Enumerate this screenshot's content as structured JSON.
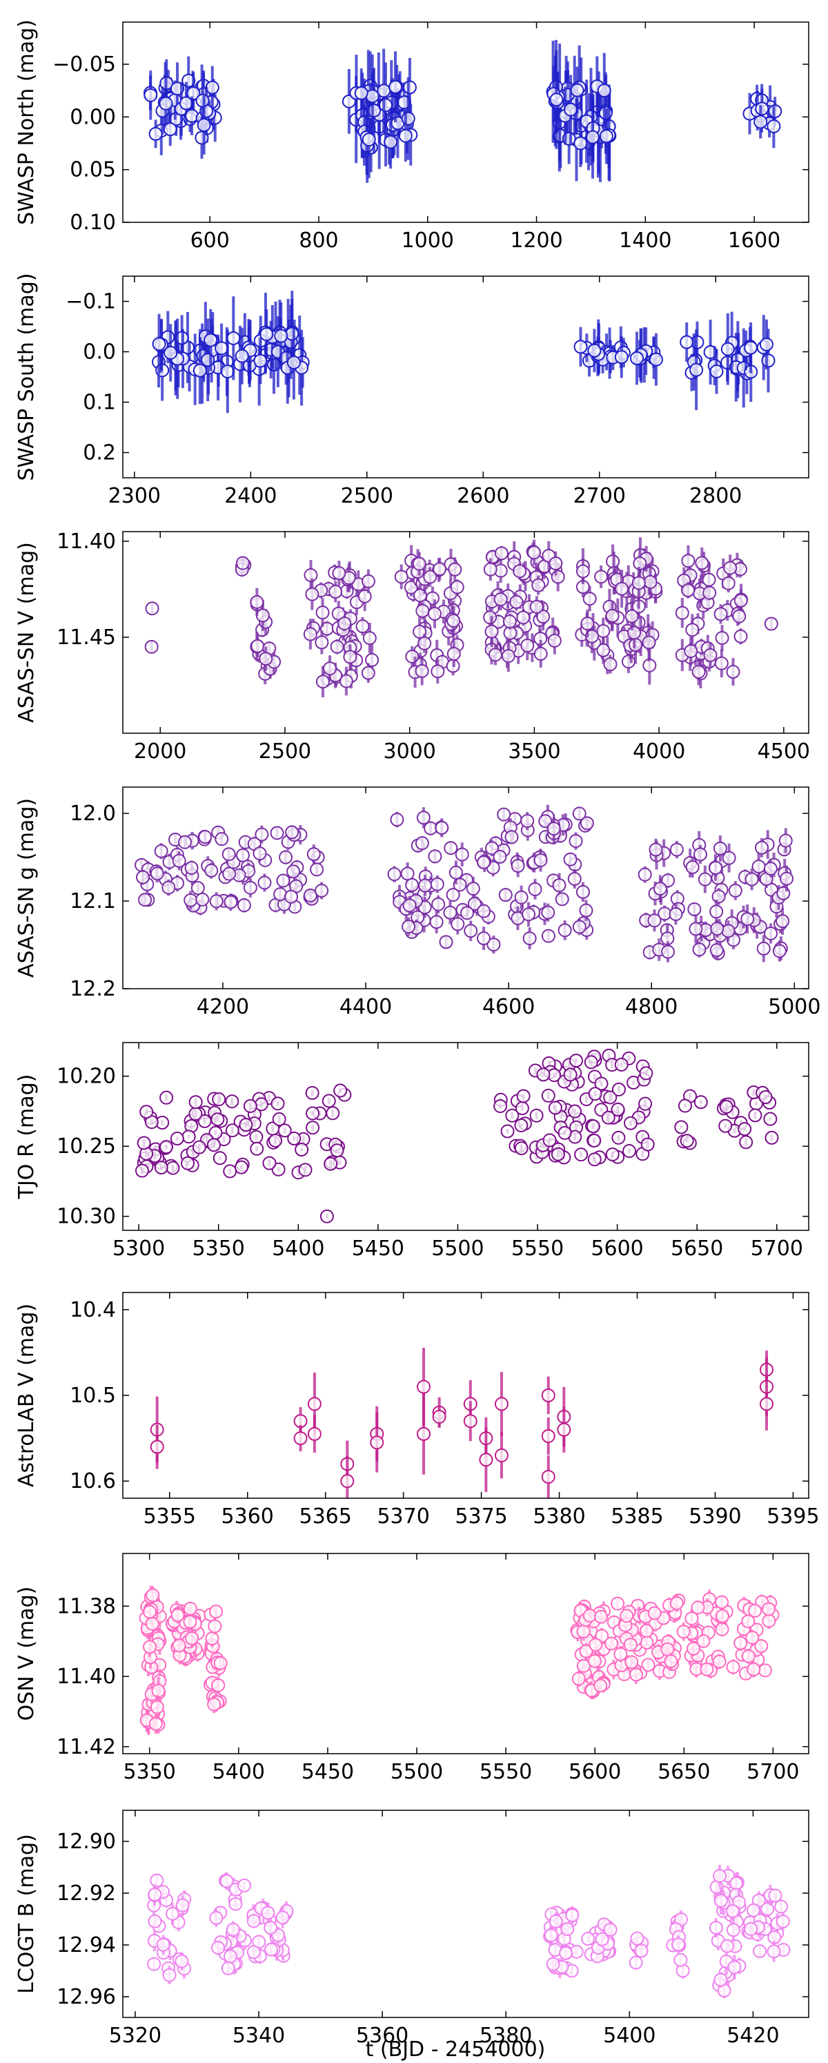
{
  "figure": {
    "xlabel": "t (BJD - 2454000)"
  },
  "chart_data": [
    {
      "type": "scatter",
      "ylabel": "SWASP North (mag)",
      "color": "#1f1fc8",
      "xlim": [
        440,
        1700
      ],
      "ylim": [
        -0.09,
        0.1
      ],
      "y_inverted": true,
      "xticks": [
        600,
        800,
        1000,
        1200,
        1400,
        1600
      ],
      "yticks": [
        -0.05,
        0.0,
        0.05,
        0.1
      ],
      "ytick_labels": [
        "−0.05",
        "0.00",
        "0.05",
        "0.10"
      ],
      "clusters": [
        {
          "x0": 490,
          "x1": 610,
          "n": 40,
          "ymin": -0.04,
          "ymax": 0.02,
          "err": 0.02
        },
        {
          "x0": 855,
          "x1": 970,
          "n": 45,
          "ymin": -0.03,
          "ymax": 0.03,
          "err": 0.03
        },
        {
          "x0": 1230,
          "x1": 1335,
          "n": 50,
          "ymin": -0.03,
          "ymax": 0.03,
          "err": 0.035
        },
        {
          "x0": 1590,
          "x1": 1640,
          "n": 12,
          "ymin": -0.02,
          "ymax": 0.01,
          "err": 0.015
        }
      ]
    },
    {
      "type": "scatter",
      "ylabel": "SWASP South (mag)",
      "color": "#1f1fc8",
      "xlim": [
        2290,
        2880
      ],
      "ylim": [
        -0.15,
        0.25
      ],
      "y_inverted": true,
      "xticks": [
        2300,
        2400,
        2500,
        2600,
        2700,
        2800
      ],
      "yticks": [
        -0.1,
        0.0,
        0.1,
        0.2
      ],
      "ytick_labels": [
        "−0.1",
        "0.0",
        "0.1",
        "0.2"
      ],
      "clusters": [
        {
          "x0": 2320,
          "x1": 2445,
          "n": 70,
          "ymin": -0.04,
          "ymax": 0.04,
          "err": 0.06
        },
        {
          "x0": 2683,
          "x1": 2755,
          "n": 25,
          "ymin": -0.01,
          "ymax": 0.02,
          "err": 0.04
        },
        {
          "x0": 2775,
          "x1": 2850,
          "n": 25,
          "ymin": -0.02,
          "ymax": 0.05,
          "err": 0.06
        }
      ]
    },
    {
      "type": "scatter",
      "ylabel": "ASAS-SN V (mag)",
      "color": "#7a2fa5",
      "xlim": [
        1850,
        4600
      ],
      "ylim": [
        11.395,
        11.5
      ],
      "y_inverted": true,
      "xticks": [
        2000,
        2500,
        3000,
        3500,
        4000,
        4500
      ],
      "yticks": [
        11.4,
        11.45
      ],
      "ytick_labels": [
        "11.40",
        "11.45"
      ],
      "clusters": [
        {
          "x0": 1965,
          "x1": 1975,
          "n": 2,
          "ymin": 11.435,
          "ymax": 11.455,
          "err": 0.004
        },
        {
          "x0": 2320,
          "x1": 2340,
          "n": 4,
          "ymin": 11.41,
          "ymax": 11.415,
          "err": 0.004
        },
        {
          "x0": 2370,
          "x1": 2460,
          "n": 14,
          "ymin": 11.425,
          "ymax": 11.47,
          "err": 0.006
        },
        {
          "x0": 2600,
          "x1": 2850,
          "n": 45,
          "ymin": 11.415,
          "ymax": 11.475,
          "err": 0.006
        },
        {
          "x0": 2950,
          "x1": 3200,
          "n": 50,
          "ymin": 11.41,
          "ymax": 11.47,
          "err": 0.006
        },
        {
          "x0": 3320,
          "x1": 3600,
          "n": 60,
          "ymin": 11.405,
          "ymax": 11.46,
          "err": 0.006
        },
        {
          "x0": 3690,
          "x1": 3990,
          "n": 60,
          "ymin": 11.405,
          "ymax": 11.465,
          "err": 0.008
        },
        {
          "x0": 4090,
          "x1": 4340,
          "n": 45,
          "ymin": 11.41,
          "ymax": 11.47,
          "err": 0.006
        },
        {
          "x0": 4450,
          "x1": 4460,
          "n": 1,
          "ymin": 11.443,
          "ymax": 11.443,
          "err": 0.004
        }
      ]
    },
    {
      "type": "scatter",
      "ylabel": "ASAS-SN g (mag)",
      "color": "#7a2fa5",
      "xlim": [
        4060,
        5020
      ],
      "ylim": [
        11.97,
        12.2
      ],
      "y_inverted": true,
      "xticks": [
        4200,
        4400,
        4600,
        4800,
        5000
      ],
      "yticks": [
        12.0,
        12.1,
        12.2
      ],
      "ytick_labels": [
        "12.0",
        "12.1",
        "12.2"
      ],
      "clusters": [
        {
          "x0": 4085,
          "x1": 4345,
          "n": 80,
          "ymin": 12.02,
          "ymax": 12.11,
          "err": 0.008
        },
        {
          "x0": 4440,
          "x1": 4710,
          "n": 110,
          "ymin": 12.0,
          "ymax": 12.15,
          "err": 0.01
        },
        {
          "x0": 4790,
          "x1": 4990,
          "n": 80,
          "ymin": 12.03,
          "ymax": 12.16,
          "err": 0.012
        }
      ]
    },
    {
      "type": "scatter",
      "ylabel": "TJO R (mag)",
      "color": "#7a0f8a",
      "xlim": [
        5290,
        5720
      ],
      "ylim": [
        10.176,
        10.31
      ],
      "y_inverted": true,
      "xticks": [
        5300,
        5350,
        5400,
        5450,
        5500,
        5550,
        5600,
        5650,
        5700
      ],
      "yticks": [
        10.2,
        10.25,
        10.3
      ],
      "ytick_labels": [
        "10.20",
        "10.25",
        "10.30"
      ],
      "clusters": [
        {
          "x0": 5300,
          "x1": 5430,
          "n": 90,
          "ymin": 10.21,
          "ymax": 10.27,
          "err": 0.002
        },
        {
          "x0": 5418,
          "x1": 5420,
          "n": 1,
          "ymin": 10.3,
          "ymax": 10.3,
          "err": 0.002
        },
        {
          "x0": 5525,
          "x1": 5620,
          "n": 90,
          "ymin": 10.185,
          "ymax": 10.26,
          "err": 0.002
        },
        {
          "x0": 5640,
          "x1": 5700,
          "n": 25,
          "ymin": 10.21,
          "ymax": 10.25,
          "err": 0.002
        }
      ]
    },
    {
      "type": "scatter",
      "ylabel": "AstroLAB V (mag)",
      "color": "#c01a8a",
      "xlim": [
        5352,
        5396
      ],
      "ylim": [
        10.38,
        10.62
      ],
      "y_inverted": true,
      "xticks": [
        5355,
        5360,
        5365,
        5370,
        5375,
        5380,
        5385,
        5390,
        5395
      ],
      "yticks": [
        10.4,
        10.5,
        10.6
      ],
      "ytick_labels": [
        "10.4",
        "10.5",
        "10.6"
      ],
      "clusters": [
        {
          "x0": 5354.2,
          "x1": 5354.2,
          "n": 2,
          "ymin": 10.54,
          "ymax": 10.56,
          "err": 0.03
        },
        {
          "x0": 5363.4,
          "x1": 5363.4,
          "n": 2,
          "ymin": 10.53,
          "ymax": 10.55,
          "err": 0.025
        },
        {
          "x0": 5364.3,
          "x1": 5364.3,
          "n": 2,
          "ymin": 10.51,
          "ymax": 10.545,
          "err": 0.03
        },
        {
          "x0": 5366.4,
          "x1": 5366.4,
          "n": 2,
          "ymin": 10.58,
          "ymax": 10.6,
          "err": 0.04
        },
        {
          "x0": 5368.3,
          "x1": 5368.3,
          "n": 2,
          "ymin": 10.545,
          "ymax": 10.555,
          "err": 0.025
        },
        {
          "x0": 5371.3,
          "x1": 5371.3,
          "n": 2,
          "ymin": 10.49,
          "ymax": 10.545,
          "err": 0.06
        },
        {
          "x0": 5372.3,
          "x1": 5372.3,
          "n": 2,
          "ymin": 10.52,
          "ymax": 10.525,
          "err": 0.015
        },
        {
          "x0": 5374.3,
          "x1": 5374.3,
          "n": 2,
          "ymin": 10.51,
          "ymax": 10.53,
          "err": 0.03
        },
        {
          "x0": 5375.3,
          "x1": 5375.3,
          "n": 2,
          "ymin": 10.55,
          "ymax": 10.575,
          "err": 0.03
        },
        {
          "x0": 5376.3,
          "x1": 5376.3,
          "n": 2,
          "ymin": 10.51,
          "ymax": 10.57,
          "err": 0.03
        },
        {
          "x0": 5379.3,
          "x1": 5379.3,
          "n": 3,
          "ymin": 10.5,
          "ymax": 10.595,
          "err": 0.03
        },
        {
          "x0": 5380.3,
          "x1": 5380.3,
          "n": 2,
          "ymin": 10.525,
          "ymax": 10.54,
          "err": 0.025
        },
        {
          "x0": 5393.3,
          "x1": 5393.3,
          "n": 3,
          "ymin": 10.47,
          "ymax": 10.51,
          "err": 0.03
        }
      ]
    },
    {
      "type": "scatter",
      "ylabel": "OSN V (mag)",
      "color": "#ff69c0",
      "xlim": [
        5335,
        5720
      ],
      "ylim": [
        11.365,
        11.422
      ],
      "y_inverted": true,
      "xticks": [
        5350,
        5400,
        5450,
        5500,
        5550,
        5600,
        5650,
        5700
      ],
      "yticks": [
        11.38,
        11.4,
        11.42
      ],
      "ytick_labels": [
        "11.38",
        "11.40",
        "11.42"
      ],
      "clusters": [
        {
          "x0": 5348,
          "x1": 5356,
          "n": 45,
          "ymin": 11.375,
          "ymax": 11.415,
          "err": 0.003
        },
        {
          "x0": 5362,
          "x1": 5378,
          "n": 40,
          "ymin": 11.38,
          "ymax": 11.395,
          "err": 0.002
        },
        {
          "x0": 5384,
          "x1": 5390,
          "n": 25,
          "ymin": 11.38,
          "ymax": 11.408,
          "err": 0.002
        },
        {
          "x0": 5590,
          "x1": 5605,
          "n": 40,
          "ymin": 11.38,
          "ymax": 11.405,
          "err": 0.002
        },
        {
          "x0": 5608,
          "x1": 5700,
          "n": 110,
          "ymin": 11.378,
          "ymax": 11.4,
          "err": 0.002
        }
      ]
    },
    {
      "type": "scatter",
      "ylabel": "LCOGT B (mag)",
      "color": "#ee82ee",
      "xlim": [
        5318,
        5429
      ],
      "ylim": [
        12.888,
        12.968
      ],
      "y_inverted": true,
      "xticks": [
        5320,
        5340,
        5360,
        5380,
        5400,
        5420
      ],
      "yticks": [
        12.9,
        12.92,
        12.94,
        12.96
      ],
      "ytick_labels": [
        "12.90",
        "12.92",
        "12.94",
        "12.96"
      ],
      "clusters": [
        {
          "x0": 5323,
          "x1": 5328,
          "n": 25,
          "ymin": 12.915,
          "ymax": 12.952,
          "err": 0.003
        },
        {
          "x0": 5333,
          "x1": 5338,
          "n": 25,
          "ymin": 12.915,
          "ymax": 12.95,
          "err": 0.003
        },
        {
          "x0": 5339,
          "x1": 5345,
          "n": 25,
          "ymin": 12.925,
          "ymax": 12.945,
          "err": 0.003
        },
        {
          "x0": 5387,
          "x1": 5392,
          "n": 25,
          "ymin": 12.925,
          "ymax": 12.95,
          "err": 0.003
        },
        {
          "x0": 5393,
          "x1": 5397,
          "n": 20,
          "ymin": 12.932,
          "ymax": 12.945,
          "err": 0.002
        },
        {
          "x0": 5401,
          "x1": 5402,
          "n": 8,
          "ymin": 12.935,
          "ymax": 12.948,
          "err": 0.002
        },
        {
          "x0": 5407,
          "x1": 5409,
          "n": 10,
          "ymin": 12.93,
          "ymax": 12.95,
          "err": 0.003
        },
        {
          "x0": 5414,
          "x1": 5418,
          "n": 30,
          "ymin": 12.91,
          "ymax": 12.96,
          "err": 0.004
        },
        {
          "x0": 5419,
          "x1": 5425,
          "n": 25,
          "ymin": 12.92,
          "ymax": 12.945,
          "err": 0.003
        }
      ]
    }
  ]
}
